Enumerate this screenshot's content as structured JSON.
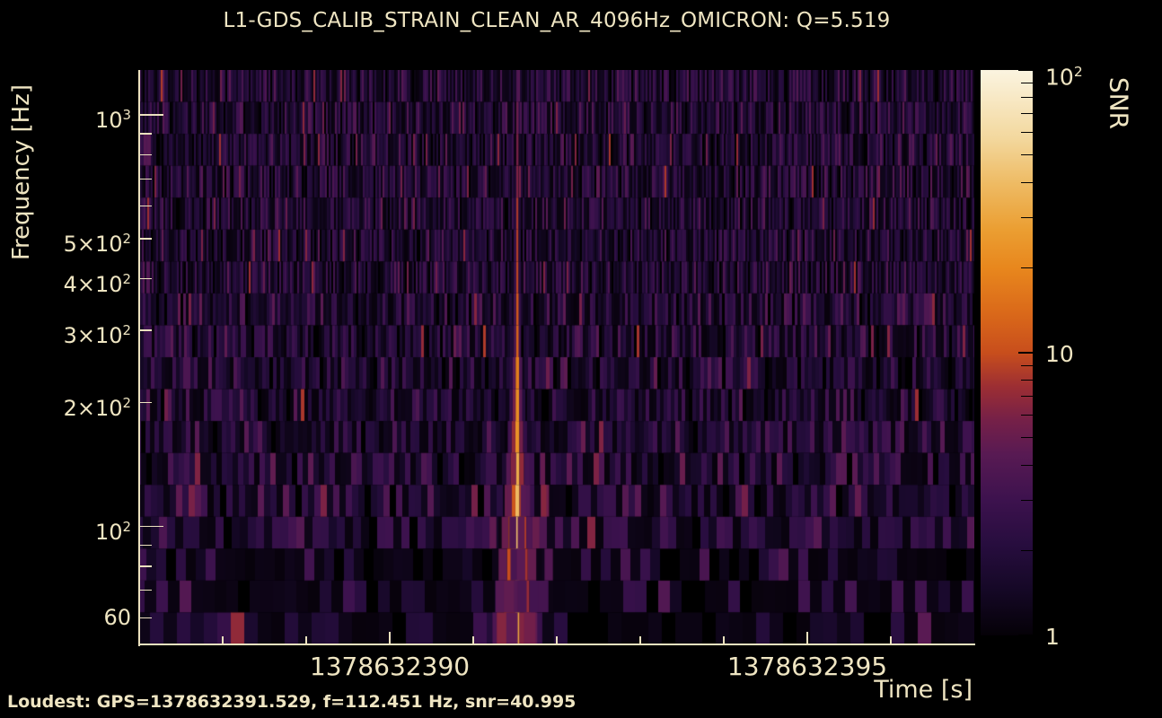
{
  "title": "L1-GDS_CALIB_STRAIN_CLEAN_AR_4096Hz_OMICRON: Q=5.519",
  "footer": {
    "loudest": "Loudest: GPS=1378632391.529, f=112.451 Hz, snr=40.995"
  },
  "colors": {
    "background": "#000000",
    "text": "#efe5c2",
    "axis": "#ece2bf"
  },
  "chart_data": {
    "type": "heatmap",
    "subtype": "omicron-q-transform-spectrogram",
    "title": "L1-GDS_CALIB_STRAIN_CLEAN_AR_4096Hz_OMICRON: Q=5.519",
    "q_value": 5.519,
    "xlabel": "Time [s]",
    "ylabel": "Frequency [Hz]",
    "colorbar_label": "SNR",
    "grid": false,
    "x_axis": {
      "scale": "linear",
      "min": 1378632387.0,
      "max": 1378632397.0,
      "major_ticks": [
        {
          "value": 1378632390,
          "label": "1378632390"
        },
        {
          "value": 1378632395,
          "label": "1378632395"
        }
      ],
      "minor_ticks": [
        1378632388,
        1378632389,
        1378632391,
        1378632392,
        1378632393,
        1378632394,
        1378632396
      ]
    },
    "y_axis": {
      "scale": "log",
      "min": 51.7,
      "max": 1286,
      "labeled_ticks": [
        {
          "value": 1000,
          "base": "10",
          "exp": "3",
          "major": true
        },
        {
          "value": 500,
          "base": "5×10",
          "exp": "2",
          "major": false
        },
        {
          "value": 400,
          "base": "4×10",
          "exp": "2",
          "major": false
        },
        {
          "value": 300,
          "base": "3×10",
          "exp": "2",
          "major": false
        },
        {
          "value": 200,
          "base": "2×10",
          "exp": "2",
          "major": false
        },
        {
          "value": 100,
          "base": "10",
          "exp": "2",
          "major": true
        },
        {
          "value": 60,
          "base": "60",
          "exp": "",
          "major": false
        }
      ],
      "minor_ticks": [
        900,
        800,
        700,
        600,
        90,
        80,
        70
      ]
    },
    "colorbar": {
      "scale": "log",
      "min": 1,
      "max": 100,
      "labeled_ticks": [
        {
          "value": 100,
          "base": "10",
          "exp": "2"
        },
        {
          "value": 10,
          "base": "10",
          "exp": ""
        },
        {
          "value": 1,
          "base": "1",
          "exp": ""
        }
      ],
      "minor_ticks": [
        90,
        80,
        70,
        60,
        50,
        40,
        30,
        20,
        9,
        8,
        7,
        6,
        5,
        4,
        3,
        2
      ]
    },
    "colormap": {
      "name": "inferno-like",
      "stops": [
        {
          "t": 0.0,
          "color": "#050107"
        },
        {
          "t": 0.08,
          "color": "#150826"
        },
        {
          "t": 0.16,
          "color": "#270d3e"
        },
        {
          "t": 0.24,
          "color": "#3d124e"
        },
        {
          "t": 0.32,
          "color": "#581a53"
        },
        {
          "t": 0.38,
          "color": "#752048"
        },
        {
          "t": 0.44,
          "color": "#9c2e33"
        },
        {
          "t": 0.5,
          "color": "#c84e1c"
        },
        {
          "t": 0.57,
          "color": "#da691a"
        },
        {
          "t": 0.65,
          "color": "#e8871d"
        },
        {
          "t": 0.72,
          "color": "#eb9f33"
        },
        {
          "t": 0.8,
          "color": "#eebb64"
        },
        {
          "t": 0.88,
          "color": "#f3d89e"
        },
        {
          "t": 1.0,
          "color": "#fbf4e0"
        }
      ]
    },
    "loudest_event": {
      "gps": 1378632391.529,
      "frequency_hz": 112.451,
      "snr": 40.995
    },
    "event_snr_profile_logf": [
      [
        1.71,
        26
      ],
      [
        1.85,
        34
      ],
      [
        2.051,
        41
      ],
      [
        2.2,
        26
      ],
      [
        2.35,
        17
      ],
      [
        2.55,
        11
      ],
      [
        2.72,
        9
      ],
      [
        2.9,
        5.5
      ],
      [
        3.11,
        3.8
      ]
    ],
    "background_noise": {
      "description": "sparse low-SNR (1-9) time-frequency tiles, vertical stripes per frequency row",
      "seed": 1378632391,
      "rows": 18
    }
  }
}
